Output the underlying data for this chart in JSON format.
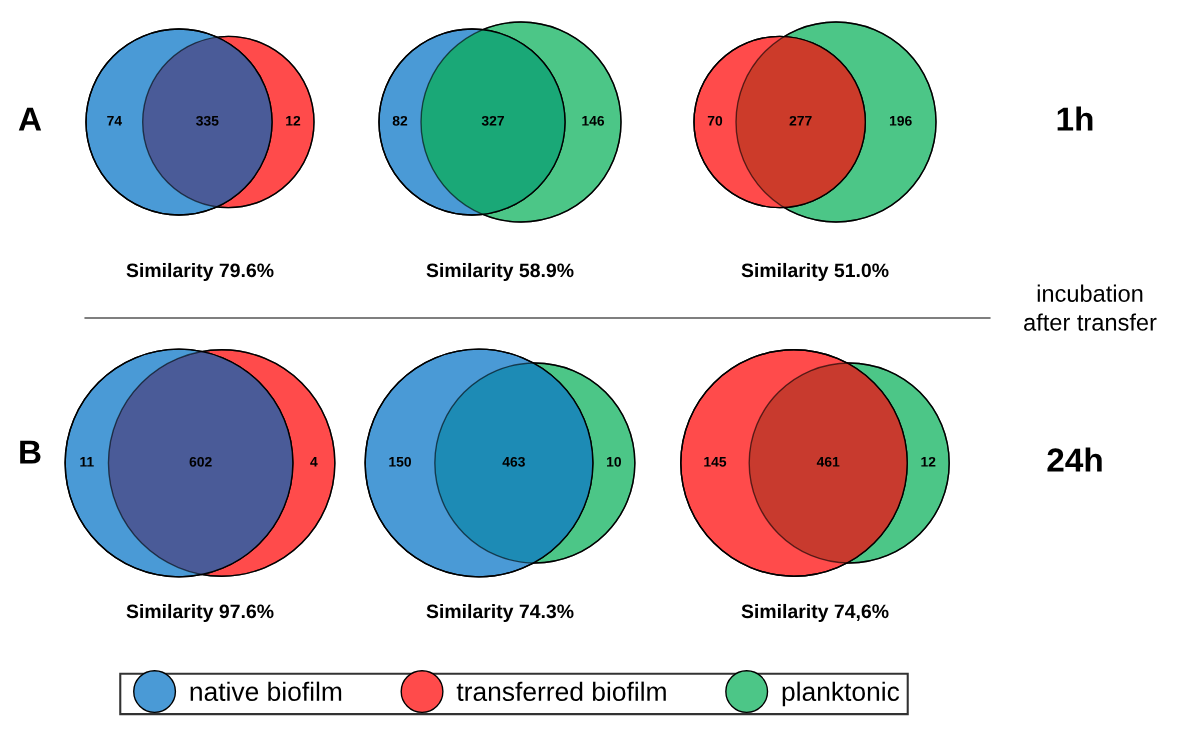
{
  "chart_data": [
    {
      "type": "other",
      "title": "Similarity 79.6%",
      "categories": [
        null,
        null,
        null
      ],
      "values": [
        74,
        335,
        12
      ],
      "colors": [
        "#4a9ad6",
        "#4a5b98",
        "#ff4b4b"
      ],
      "data_labels": true
    },
    {
      "type": "other",
      "title": "Similarity 58.9%",
      "categories": [
        null,
        null,
        null
      ],
      "values": [
        82,
        327,
        146
      ],
      "colors": [
        "#4a9ad6",
        "#1aa877",
        "#4cc687"
      ],
      "data_labels": true
    },
    {
      "type": "other",
      "title": "Similarity 51.0%",
      "categories": [
        null,
        null,
        null
      ],
      "values": [
        70,
        277,
        196
      ],
      "colors": [
        "#ff4b4b",
        "#cc3b2a",
        "#4cc687"
      ],
      "data_labels": true
    },
    {
      "type": "other",
      "title": "Similarity 97.6%",
      "categories": [
        null,
        null,
        null
      ],
      "values": [
        11,
        602,
        4
      ],
      "colors": [
        "#4a9ad6",
        "#4a5b98",
        "#ff4b4b"
      ],
      "data_labels": true
    },
    {
      "type": "other",
      "title": "Similarity 74.3%",
      "categories": [
        null,
        null,
        null
      ],
      "values": [
        150,
        463,
        10
      ],
      "colors": [
        "#4a9ad6",
        "#1d8bb5",
        "#4cc687"
      ],
      "data_labels": true
    },
    {
      "type": "other",
      "title": "Similarity 74,6%",
      "categories": [
        null,
        null,
        null
      ],
      "values": [
        145,
        461,
        12
      ],
      "colors": [
        "#ff4b4b",
        "#c83a2e",
        "#4cc687"
      ],
      "data_labels": true
    },
    {
      "type": "other",
      "annotations": [
        "A",
        "1h",
        "B",
        "24h",
        "incubation\nafter transfer"
      ],
      "legend": "bottom",
      "series": [
        {
          "name": "native biofilm",
          "color": "#4a9ad6"
        },
        {
          "name": "transferred biofilm",
          "color": "#ff4b4b"
        },
        {
          "name": "planktonic",
          "color": "#4cc687"
        }
      ]
    }
  ]
}
